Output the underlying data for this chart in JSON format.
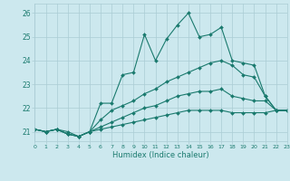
{
  "xlabel": "Humidex (Indice chaleur)",
  "xlim": [
    0,
    23
  ],
  "ylim": [
    20.6,
    26.4
  ],
  "background_color": "#cce8ee",
  "grid_color": "#aaccd4",
  "line_color": "#1a7a6e",
  "x_ticks": [
    0,
    1,
    2,
    3,
    4,
    5,
    6,
    7,
    8,
    9,
    10,
    11,
    12,
    13,
    14,
    15,
    16,
    17,
    18,
    19,
    20,
    21,
    22,
    23
  ],
  "y_ticks": [
    21,
    22,
    23,
    24,
    25,
    26
  ],
  "lines": [
    {
      "x": [
        0,
        1,
        2,
        3,
        4,
        5,
        6,
        7,
        8,
        9,
        10,
        11,
        12,
        13,
        14,
        15,
        16,
        17,
        18,
        19,
        20,
        21,
        22,
        23
      ],
      "y": [
        21.1,
        21.0,
        21.1,
        21.0,
        20.8,
        21.0,
        22.2,
        22.2,
        23.4,
        23.5,
        25.1,
        24.0,
        24.9,
        25.5,
        26.0,
        25.0,
        25.1,
        25.4,
        24.0,
        23.9,
        23.8,
        22.5,
        21.9,
        21.9
      ],
      "markersize": 2.0,
      "linewidth": 0.8
    },
    {
      "x": [
        0,
        1,
        2,
        3,
        4,
        5,
        6,
        7,
        8,
        9,
        10,
        11,
        12,
        13,
        14,
        15,
        16,
        17,
        18,
        19,
        20,
        21,
        22,
        23
      ],
      "y": [
        21.1,
        21.0,
        21.1,
        20.9,
        20.8,
        21.0,
        21.5,
        21.9,
        22.1,
        22.3,
        22.6,
        22.8,
        23.1,
        23.3,
        23.5,
        23.7,
        23.9,
        24.0,
        23.8,
        23.4,
        23.3,
        22.5,
        21.9,
        21.9
      ],
      "markersize": 2.0,
      "linewidth": 0.8
    },
    {
      "x": [
        0,
        1,
        2,
        3,
        4,
        5,
        6,
        7,
        8,
        9,
        10,
        11,
        12,
        13,
        14,
        15,
        16,
        17,
        18,
        19,
        20,
        21,
        22,
        23
      ],
      "y": [
        21.1,
        21.0,
        21.1,
        20.9,
        20.8,
        21.0,
        21.2,
        21.4,
        21.6,
        21.8,
        22.0,
        22.1,
        22.3,
        22.5,
        22.6,
        22.7,
        22.7,
        22.8,
        22.5,
        22.4,
        22.3,
        22.3,
        21.9,
        21.9
      ],
      "markersize": 2.0,
      "linewidth": 0.8
    },
    {
      "x": [
        0,
        1,
        2,
        3,
        4,
        5,
        6,
        7,
        8,
        9,
        10,
        11,
        12,
        13,
        14,
        15,
        16,
        17,
        18,
        19,
        20,
        21,
        22,
        23
      ],
      "y": [
        21.1,
        21.0,
        21.1,
        20.9,
        20.8,
        21.0,
        21.1,
        21.2,
        21.3,
        21.4,
        21.5,
        21.6,
        21.7,
        21.8,
        21.9,
        21.9,
        21.9,
        21.9,
        21.8,
        21.8,
        21.8,
        21.8,
        21.9,
        21.9
      ],
      "markersize": 2.0,
      "linewidth": 0.8
    }
  ]
}
